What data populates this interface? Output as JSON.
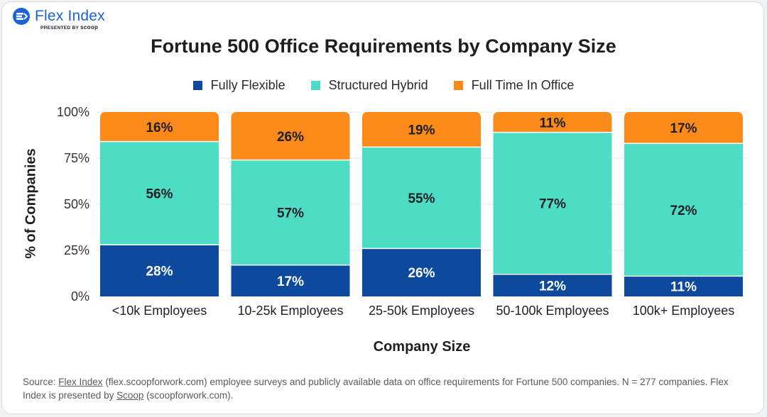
{
  "brand": {
    "name": "Flex Index",
    "tagline_prefix": "PRESENTED BY",
    "tagline_brand": "scoop"
  },
  "colors": {
    "fully_flexible": "#0d4a9e",
    "structured_hybrid": "#4dddc7",
    "full_time_office": "#fc8a1b"
  },
  "chart_data": {
    "type": "bar",
    "stacked": true,
    "title": "Fortune 500 Office Requirements by Company Size",
    "xlabel": "Company Size",
    "ylabel": "% of Companies",
    "ylim": [
      0,
      100
    ],
    "yticks": [
      "0%",
      "25%",
      "50%",
      "75%",
      "100%"
    ],
    "grid": true,
    "legend_position": "top-center",
    "categories": [
      "<10k Employees",
      "10-25k Employees",
      "25-50k Employees",
      "50-100k Employees",
      "100k+ Employees"
    ],
    "series": [
      {
        "name": "Fully Flexible",
        "color": "#0d4a9e",
        "values": [
          28,
          17,
          26,
          12,
          11
        ],
        "labels": [
          "28%",
          "17%",
          "26%",
          "12%",
          "11%"
        ]
      },
      {
        "name": "Structured Hybrid",
        "color": "#4dddc7",
        "values": [
          56,
          57,
          55,
          77,
          72
        ],
        "labels": [
          "56%",
          "57%",
          "55%",
          "77%",
          "72%"
        ]
      },
      {
        "name": "Full Time In Office",
        "color": "#fc8a1b",
        "values": [
          16,
          26,
          19,
          11,
          17
        ],
        "labels": [
          "16%",
          "26%",
          "19%",
          "11%",
          "17%"
        ]
      }
    ]
  },
  "source": {
    "prefix": "Source: ",
    "link1": "Flex Index",
    "mid": " (flex.scoopforwork.com) employee surveys and publicly available data on office requirements for Fortune 500 companies. N = 277 companies. Flex Index is presented by ",
    "link2": "Scoop",
    "suffix": " (scoopforwork.com)."
  }
}
